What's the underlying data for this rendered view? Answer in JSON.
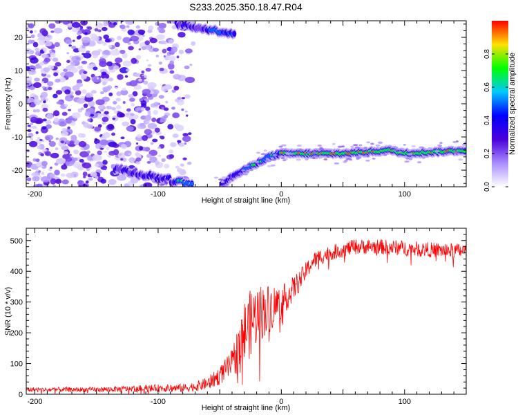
{
  "page_title": "S233.2025.350.18.47.R04",
  "chart_data": [
    {
      "type": "heatmap",
      "title": "S233.2025.350.18.47.R04",
      "xlabel": "Height of straight line (km)",
      "ylabel": "Frequency (Hz)",
      "xlim": [
        -207,
        150
      ],
      "ylim": [
        -25,
        25
      ],
      "xticks": [
        -200,
        -100,
        0,
        100
      ],
      "yticks": [
        -20,
        -10,
        0,
        10,
        20
      ],
      "tone": {
        "description_points_km": [
          -50,
          -40,
          -30,
          -20,
          -10,
          0,
          10,
          50,
          90,
          100,
          150
        ],
        "frequency_hz": [
          -25,
          -22,
          -20,
          -18,
          -16,
          -15,
          -15,
          -15,
          -14,
          -15,
          -14
        ]
      },
      "colorbar": {
        "label": "Normalized spectral amplitude",
        "range": [
          0,
          1
        ],
        "ticks": [
          0.0,
          0.2,
          0.4,
          0.6,
          0.8
        ],
        "tick_labels": [
          "0.0",
          "0.2",
          "0.4",
          "0.6",
          "0.8"
        ],
        "colormap": [
          "#ffffff",
          "#a98cff",
          "#4b00d8",
          "#0000ff",
          "#00c8ff",
          "#00ff00",
          "#ffe000",
          "#ff0000"
        ]
      }
    },
    {
      "type": "line",
      "xlabel": "Height of straight line (km)",
      "ylabel": "SNR (10 * v/v)",
      "xlim": [
        -207,
        150
      ],
      "ylim": [
        0,
        540
      ],
      "xticks": [
        -200,
        -100,
        0,
        100
      ],
      "yticks": [
        0,
        100,
        200,
        300,
        400,
        500
      ],
      "series": [
        {
          "name": "SNR",
          "color": "#ff0000",
          "x": [
            -207,
            -150,
            -100,
            -80,
            -70,
            -60,
            -50,
            -40,
            -35,
            -30,
            -25,
            -20,
            -15,
            -10,
            -5,
            0,
            5,
            10,
            15,
            20,
            25,
            30,
            40,
            50,
            60,
            80,
            100,
            120,
            150
          ],
          "y": [
            15,
            15,
            20,
            20,
            25,
            35,
            60,
            100,
            150,
            200,
            230,
            260,
            270,
            280,
            290,
            300,
            320,
            345,
            370,
            400,
            430,
            445,
            460,
            470,
            480,
            480,
            475,
            470,
            465
          ],
          "noise": [
            8,
            8,
            12,
            14,
            16,
            20,
            30,
            45,
            80,
            110,
            110,
            100,
            90,
            80,
            70,
            55,
            45,
            40,
            35,
            30,
            28,
            27,
            25,
            25,
            25,
            25,
            25,
            25,
            25
          ]
        }
      ]
    }
  ]
}
